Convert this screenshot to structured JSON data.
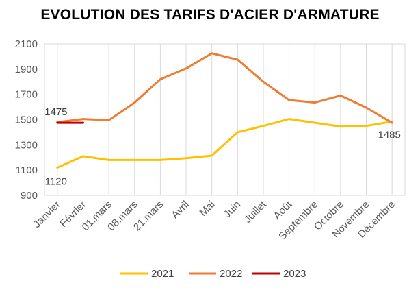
{
  "chart_data": {
    "type": "line",
    "title": "EVOLUTION DES TARIFS D'ACIER D'ARMATURE",
    "xlabel": "",
    "ylabel": "",
    "ylim": [
      900,
      2100
    ],
    "yticks": [
      900,
      1100,
      1300,
      1500,
      1700,
      1900,
      2100
    ],
    "categories": [
      "Janvier",
      "Février",
      "01.mars",
      "08.mars",
      "21.mars",
      "Avril",
      "Mai",
      "Juin",
      "Juillet",
      "Août",
      "Septembre",
      "Octobre",
      "Novembre",
      "Décembre"
    ],
    "grid": "vertical",
    "legend_position": "bottom",
    "series": [
      {
        "name": "2021",
        "color": "#FFC000",
        "values": [
          1120,
          1210,
          1180,
          1180,
          1180,
          1195,
          1215,
          1400,
          1450,
          1505,
          1475,
          1445,
          1450,
          1485
        ]
      },
      {
        "name": "2022",
        "color": "#ED7D31",
        "values": [
          1480,
          1505,
          1495,
          1635,
          1820,
          1905,
          2025,
          1975,
          1800,
          1655,
          1635,
          1690,
          1595,
          1475
        ]
      },
      {
        "name": "2023",
        "color": "#C00000",
        "values": [
          1475,
          1475,
          null,
          null,
          null,
          null,
          null,
          null,
          null,
          null,
          null,
          null,
          null,
          null
        ]
      }
    ],
    "data_labels": [
      {
        "text": "1475"
      },
      {
        "text": "1120"
      },
      {
        "text": "1485"
      }
    ]
  }
}
